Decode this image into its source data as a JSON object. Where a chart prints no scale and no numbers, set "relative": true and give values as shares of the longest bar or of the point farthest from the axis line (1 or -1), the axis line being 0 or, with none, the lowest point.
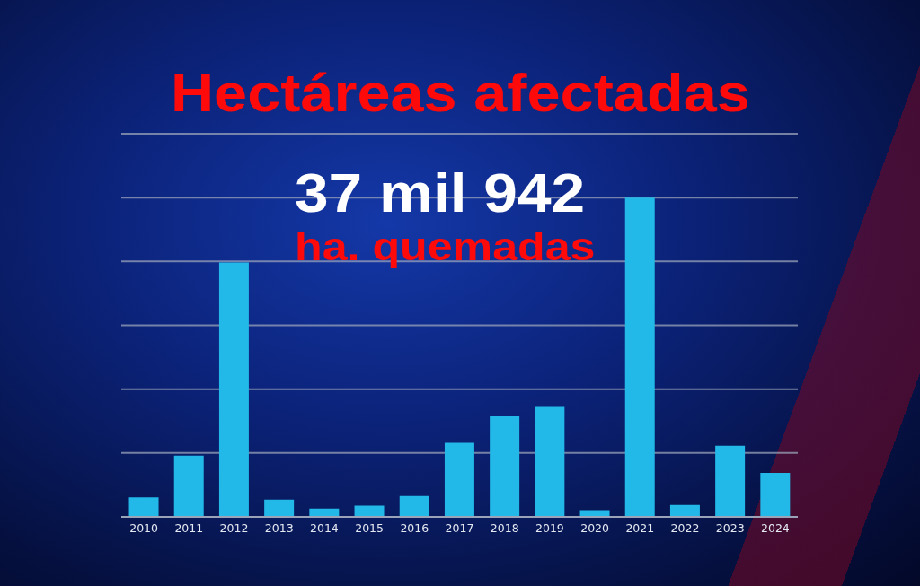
{
  "chart_data": {
    "type": "bar",
    "title": "Hectáreas afectadas",
    "annotations": [
      "37 mil 942",
      "ha. quemadas"
    ],
    "categories": [
      "2010",
      "2011",
      "2012",
      "2013",
      "2014",
      "2015",
      "2016",
      "2017",
      "2018",
      "2019",
      "2020",
      "2021",
      "2022",
      "2023",
      "2024"
    ],
    "values": [
      0.061,
      0.192,
      0.797,
      0.054,
      0.026,
      0.035,
      0.065,
      0.232,
      0.315,
      0.347,
      0.021,
      1,
      0.037,
      0.223,
      0.138
    ],
    "color": "#22b8e8",
    "relative": true,
    "grid": "y"
  }
}
